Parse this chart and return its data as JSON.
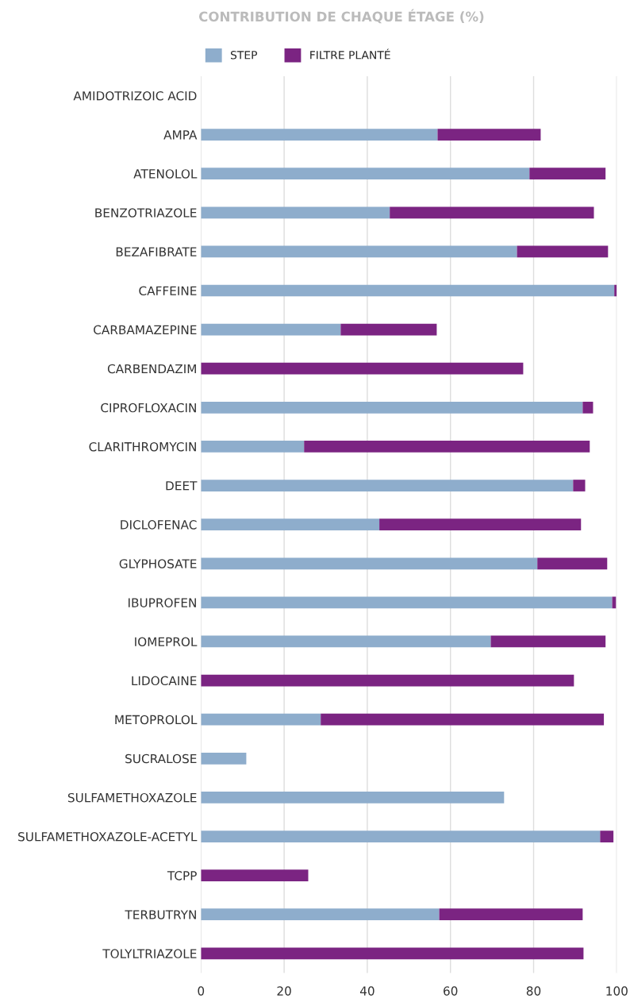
{
  "chart_data": {
    "type": "bar",
    "orientation": "horizontal",
    "stacked": true,
    "title": "CONTRIBUTION DE CHAQUE ÉTAGE (%)",
    "categories": [
      "AMIDOTRIZOIC ACID",
      "AMPA",
      "ATENOLOL",
      "BENZOTRIAZOLE",
      "BEZAFIBRATE",
      "CAFFEINE",
      "CARBAMAZEPINE",
      "CARBENDAZIM",
      "CIPROFLOXACIN",
      "CLARITHROMYCIN",
      "DEET",
      "DICLOFENAC",
      "GLYPHOSATE",
      "IBUPROFEN",
      "IOMEPROL",
      "LIDOCAINE",
      "METOPROLOL",
      "SUCRALOSE",
      "SULFAMETHOXAZOLE",
      "SULFAMETHOXAZOLE-ACETYL",
      "TCPP",
      "TERBUTRYN",
      "TOLYLTRIAZOLE"
    ],
    "series": [
      {
        "name": "STEP",
        "color": "#8eadcc",
        "values": [
          null,
          56.9,
          79.0,
          45.4,
          76.0,
          99.4,
          33.6,
          0,
          91.8,
          24.8,
          89.5,
          42.9,
          80.9,
          98.9,
          69.7,
          0,
          28.8,
          10.9,
          72.9,
          96.0,
          0,
          57.3,
          0
        ]
      },
      {
        "name": "FILTRE PLANTÉ",
        "color": "#7b2482",
        "values": [
          0,
          24.8,
          18.3,
          49.1,
          21.9,
          0.6,
          23.1,
          77.5,
          2.5,
          68.7,
          2.9,
          48.5,
          16.8,
          0.9,
          27.6,
          89.7,
          68.1,
          0,
          0,
          3.2,
          25.8,
          34.5,
          92.0
        ]
      }
    ],
    "xlim": [
      0,
      100
    ],
    "xticks": [
      0,
      20,
      40,
      60,
      80,
      100
    ],
    "grid": "x",
    "legend": "top"
  }
}
